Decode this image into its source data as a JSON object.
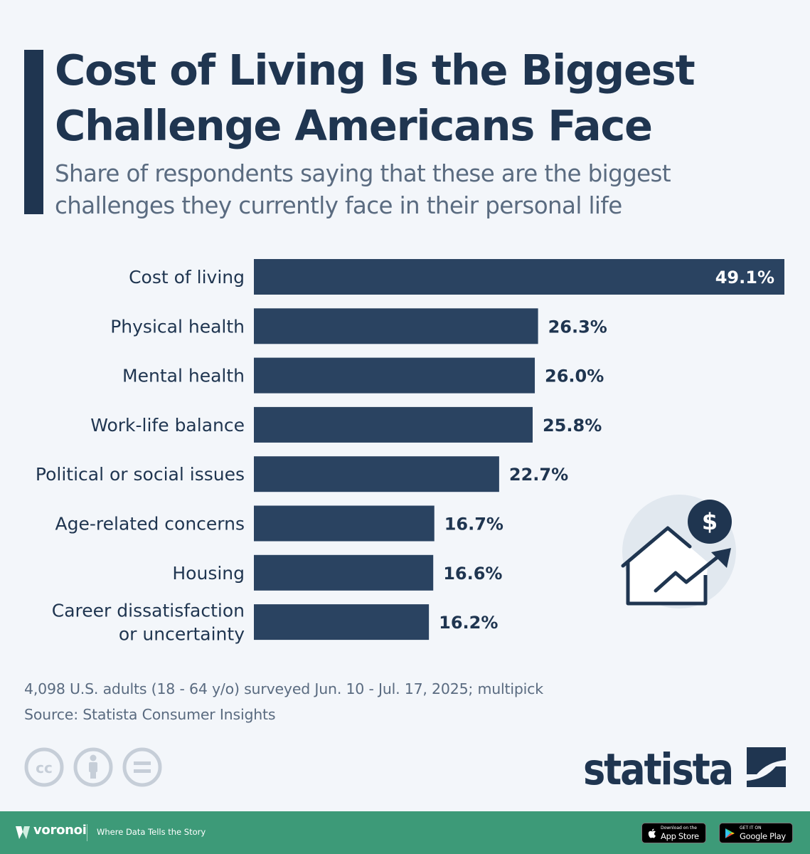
{
  "title_line1": "Cost of Living Is the Biggest",
  "title_line2": "Challenge Americans Face",
  "subtitle_line1": "Share of respondents saying that these are the biggest",
  "subtitle_line2": "challenges they currently face in their personal life",
  "chart_data": {
    "type": "bar",
    "orientation": "horizontal",
    "categories": [
      [
        "Cost of living"
      ],
      [
        "Physical health"
      ],
      [
        "Mental health"
      ],
      [
        "Work-life balance"
      ],
      [
        "Political or social issues"
      ],
      [
        "Age-related concerns"
      ],
      [
        "Housing"
      ],
      [
        "Career dissatisfaction",
        "or uncertainty"
      ]
    ],
    "values": [
      49.1,
      26.3,
      26.0,
      25.8,
      22.7,
      16.7,
      16.6,
      16.2
    ],
    "value_labels": [
      "49.1%",
      "26.3%",
      "26.0%",
      "25.8%",
      "22.7%",
      "16.7%",
      "16.6%",
      "16.2%"
    ],
    "xlim": [
      0,
      49.1
    ],
    "grid": false,
    "legend": "none",
    "bar_color": "#2a4361",
    "label_inside_color": "#ffffff",
    "label_outside_color": "#1f3550"
  },
  "footnote_line1": "4,098 U.S. adults (18 - 64 y/o) surveyed Jun. 10 - Jul. 17, 2025; multipick",
  "footnote_line2": "Source: Statista Consumer Insights",
  "brand": "statista",
  "icons": {
    "illustration": "house-price-rising-icon",
    "license": [
      "cc-icon",
      "person-icon",
      "equals-icon"
    ]
  },
  "footer": {
    "logo_text": "voronoi",
    "tagline": "Where Data Tells the Story",
    "apple_small": "Download on the",
    "apple_big": "App Store",
    "google_small": "GET IT ON",
    "google_big": "Google Play"
  },
  "colors": {
    "background": "#f3f6fa",
    "navy": "#1f3550",
    "footer_green": "#3d9a78"
  }
}
